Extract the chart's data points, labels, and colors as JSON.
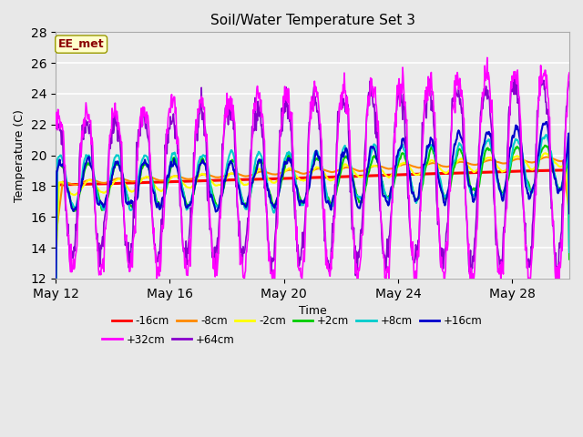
{
  "title": "Soil/Water Temperature Set 3",
  "xlabel": "Time",
  "ylabel": "Temperature (C)",
  "ylim": [
    12,
    28
  ],
  "yticks": [
    12,
    14,
    16,
    18,
    20,
    22,
    24,
    26,
    28
  ],
  "xtick_positions": [
    0,
    4,
    8,
    12,
    16
  ],
  "xtick_labels": [
    "May 12",
    "May 16",
    "May 20",
    "May 24",
    "May 28"
  ],
  "background_color": "#e8e8e8",
  "plot_bg_color": "#ebebeb",
  "series_colors": {
    "-16cm": "#ff0000",
    "-8cm": "#ff8800",
    "-2cm": "#ffff00",
    "+2cm": "#00cc00",
    "+8cm": "#00cccc",
    "+16cm": "#0000cc",
    "+32cm": "#ff00ff",
    "+64cm": "#8800cc"
  },
  "watermark_text": "EE_met",
  "watermark_color": "#8b0000",
  "watermark_bg": "#ffffcc",
  "n_days": 18,
  "pts_per_day": 48
}
